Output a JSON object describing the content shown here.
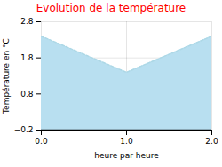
{
  "chart_data": {
    "type": "area",
    "title": "Evolution de la température",
    "x_label": "heure par heure",
    "y_label": "Température en °C",
    "x": [
      0,
      1,
      2
    ],
    "values": [
      2.4,
      1.4,
      2.4
    ],
    "xlim": [
      0,
      2
    ],
    "ylim": [
      -0.2,
      2.8
    ],
    "xticks": [
      0,
      1,
      2
    ],
    "yticks": [
      -0.2,
      0.8,
      1.8,
      2.8
    ],
    "color": "#add8e6",
    "line_style": "dashed",
    "grid": true
  }
}
